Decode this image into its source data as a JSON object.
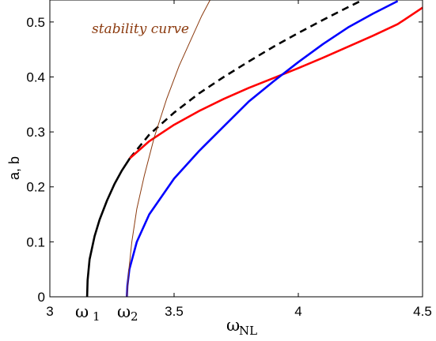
{
  "chart_data": {
    "type": "line",
    "xlabel": "ω",
    "xlabel_sub": "NL",
    "ylabel": "a, b",
    "xlim": [
      3,
      4.5
    ],
    "ylim": [
      0,
      0.54
    ],
    "xticks": [
      3,
      3.5,
      4,
      4.5
    ],
    "xtick_labels": [
      "3",
      "3.5",
      "4",
      "4.5"
    ],
    "yticks": [
      0,
      0.1,
      0.2,
      0.3,
      0.4,
      0.5
    ],
    "ytick_labels": [
      "0",
      "0.1",
      "0.2",
      "0.3",
      "0.4",
      "0.5"
    ],
    "grid": false,
    "annotations": [
      {
        "text": "stability curve",
        "color": "#8B3A0E"
      },
      {
        "text": "ω",
        "sub": "1",
        "x": 3.15
      },
      {
        "text": "ω",
        "sub": "2",
        "x": 3.31
      }
    ],
    "series": [
      {
        "color": "#000000",
        "style": "solid",
        "x": [
          3.15,
          3.152,
          3.16,
          3.18,
          3.2,
          3.23,
          3.26,
          3.29,
          3.322
        ],
        "y": [
          0.0,
          0.03,
          0.068,
          0.11,
          0.14,
          0.175,
          0.205,
          0.23,
          0.252
        ]
      },
      {
        "color": "#000000",
        "style": "dashed",
        "x": [
          3.322,
          3.4,
          3.5,
          3.6,
          3.7,
          3.8,
          3.9,
          4.0,
          4.1,
          4.2,
          4.25
        ],
        "y": [
          0.252,
          0.295,
          0.335,
          0.37,
          0.4,
          0.428,
          0.455,
          0.48,
          0.504,
          0.527,
          0.538
        ]
      },
      {
        "color": "#FF0000",
        "style": "solid",
        "x": [
          3.322,
          3.4,
          3.5,
          3.6,
          3.7,
          3.8,
          3.9,
          4.0,
          4.1,
          4.2,
          4.3,
          4.4,
          4.5
        ],
        "y": [
          0.252,
          0.283,
          0.313,
          0.338,
          0.36,
          0.38,
          0.398,
          0.416,
          0.435,
          0.455,
          0.475,
          0.496,
          0.526
        ]
      },
      {
        "color": "#0000FF",
        "style": "solid",
        "x": [
          3.31,
          3.312,
          3.32,
          3.35,
          3.4,
          3.5,
          3.6,
          3.7,
          3.8,
          3.9,
          4.0,
          4.1,
          4.2,
          4.3,
          4.4
        ],
        "y": [
          0.0,
          0.02,
          0.05,
          0.1,
          0.15,
          0.215,
          0.265,
          0.31,
          0.355,
          0.392,
          0.427,
          0.46,
          0.49,
          0.515,
          0.538
        ]
      },
      {
        "color": "#8B3A0E",
        "style": "thin",
        "x": [
          3.31,
          3.318,
          3.33,
          3.35,
          3.38,
          3.42,
          3.47,
          3.52,
          3.57,
          3.61,
          3.645
        ],
        "y": [
          0.0,
          0.05,
          0.1,
          0.16,
          0.22,
          0.29,
          0.36,
          0.42,
          0.47,
          0.51,
          0.54
        ]
      }
    ]
  }
}
